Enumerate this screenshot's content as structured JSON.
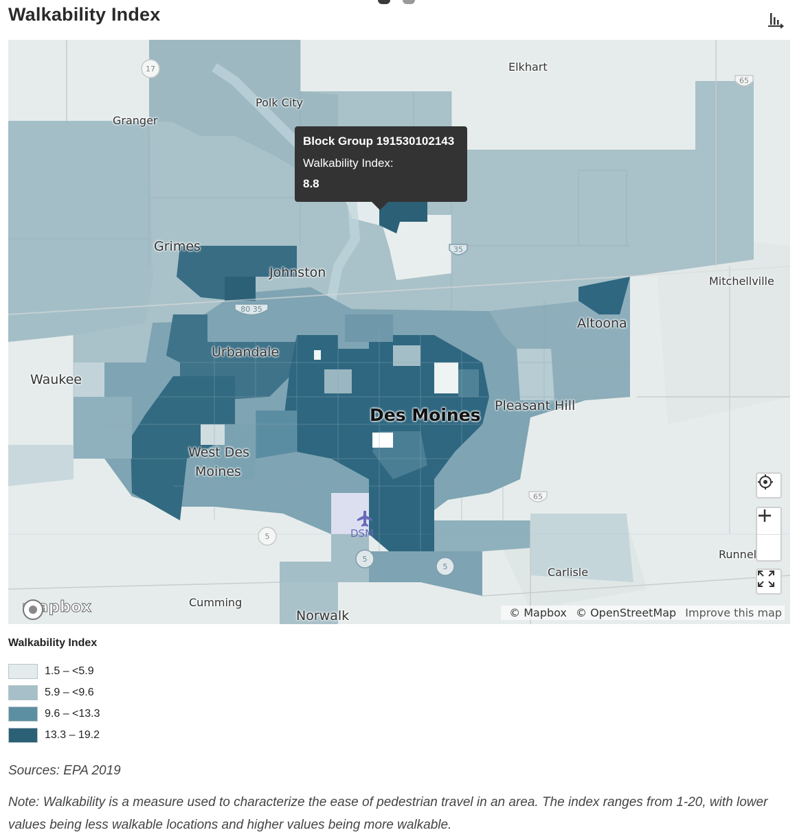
{
  "header": {
    "title": "Walkability Index",
    "chart_toggle_icon": "bar-chart-icon"
  },
  "pager": {
    "count": 2,
    "active": 1
  },
  "map": {
    "places": {
      "elkhart": "Elkhart",
      "polk_city": "Polk City",
      "granger": "Granger",
      "grimes": "Grimes",
      "johnston": "Johnston",
      "mitchellville": "Mitchellville",
      "altoona": "Altoona",
      "urbandale": "Urbandale",
      "waukee": "Waukee",
      "des_moines": "Des Moines",
      "pleasant_hill": "Pleasant Hill",
      "west_des_moines_1": "West Des",
      "west_des_moines_2": "Moines",
      "dsm": "DSM",
      "runnells": "Runnel",
      "carlisle": "Carlisle",
      "cumming": "Cumming",
      "norwalk": "Norwalk"
    },
    "highway_shields": {
      "h17": "17",
      "h65_north": "65",
      "h35": "35",
      "h80_35": "80 35",
      "h65_south": "65",
      "h5_west": "5",
      "h5_mid": "5",
      "h5_east": "5"
    },
    "tooltip": {
      "title": "Block Group 191530102143",
      "label": "Walkability Index:",
      "value": "8.8"
    },
    "controls": {
      "geolocate_icon": "crosshair-icon",
      "zoom_in_icon": "plus-icon",
      "zoom_out_icon": "minus-icon",
      "fullscreen_icon": "fullscreen-icon"
    },
    "attribution": {
      "mapbox": "© Mapbox",
      "osm": "© OpenStreetMap",
      "improve": "Improve this map"
    },
    "logo_text": "mapbox"
  },
  "legend": {
    "title": "Walkability Index",
    "items": [
      {
        "label": "1.5 – <5.9",
        "color": "#e3ebec"
      },
      {
        "label": "5.9 – <9.6",
        "color": "#a6bfc8"
      },
      {
        "label": "9.6 – <13.3",
        "color": "#5d8fa3"
      },
      {
        "label": "13.3 – 19.2",
        "color": "#2c6077"
      }
    ]
  },
  "footer": {
    "sources": "Sources: EPA 2019",
    "note": "Note: Walkability is a measure used to characterize the ease of pedestrian travel in an area. The index ranges from 1-20, with lower values being less walkable locations and higher values being more walkable."
  }
}
